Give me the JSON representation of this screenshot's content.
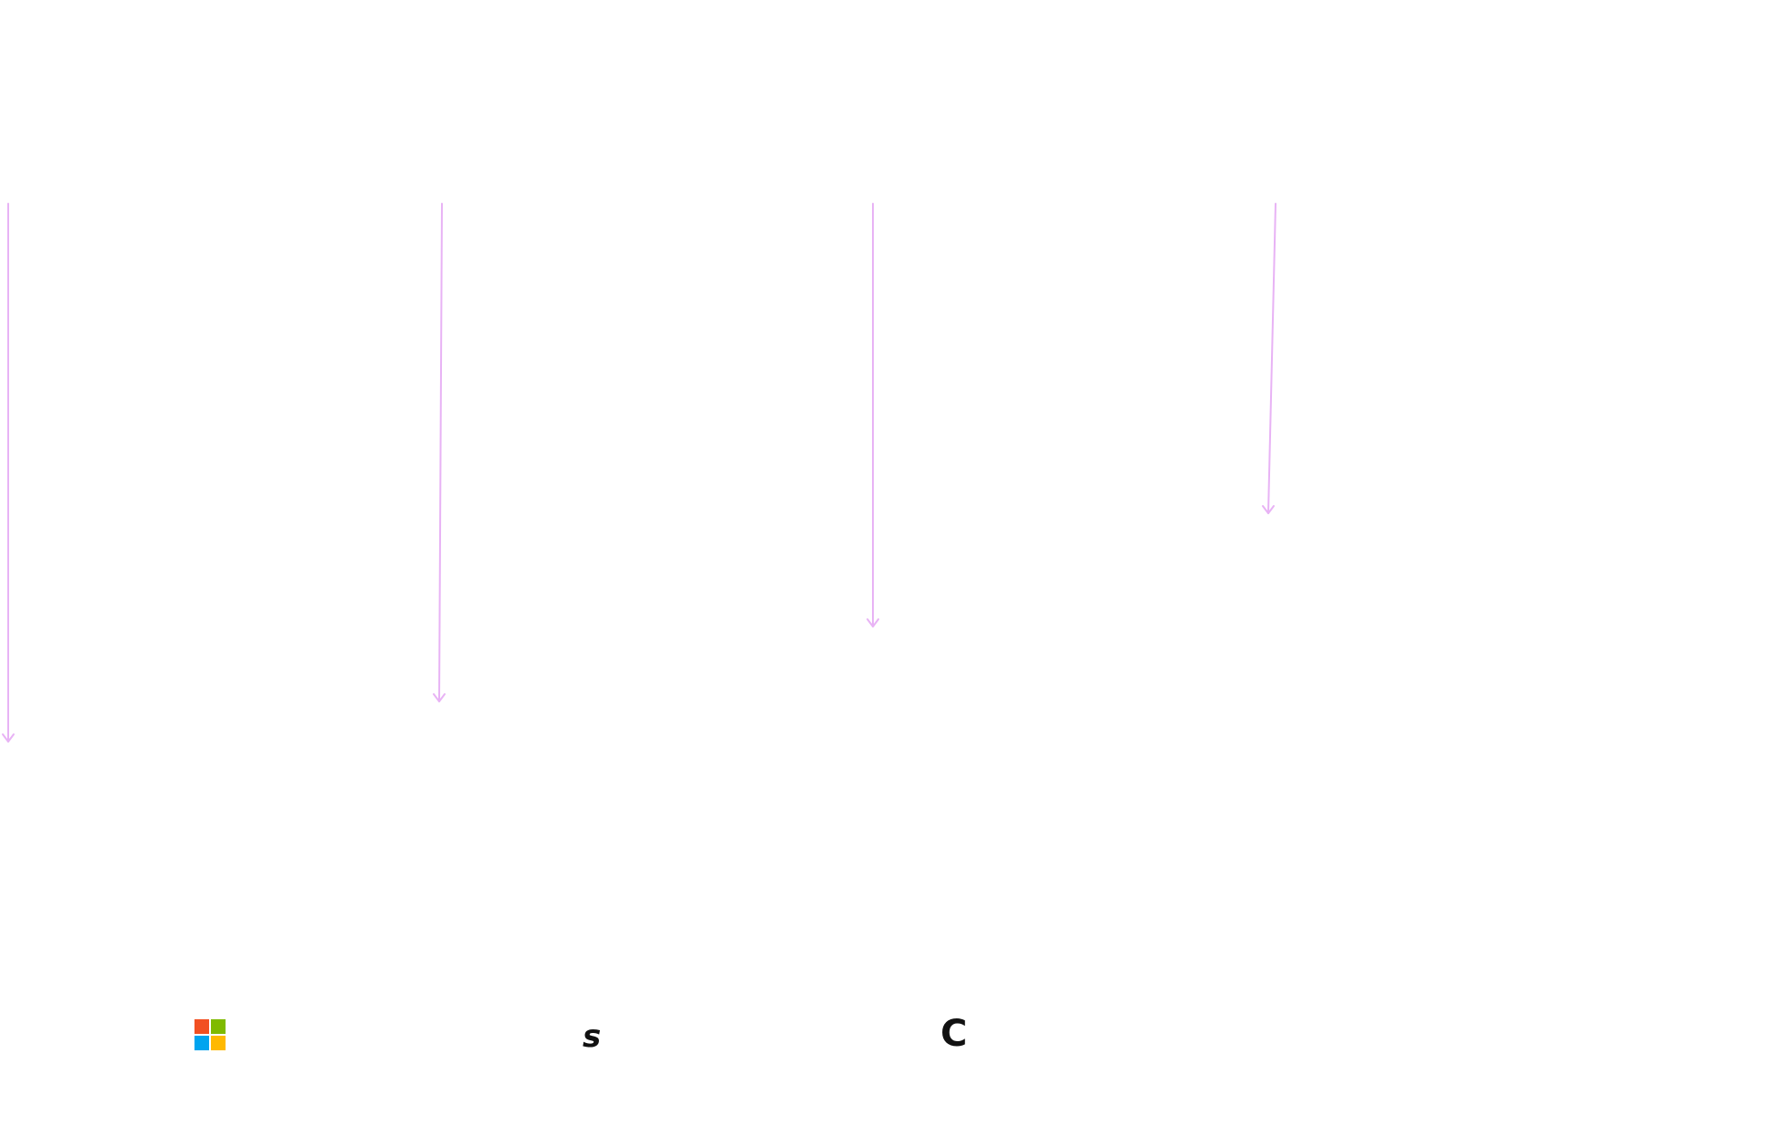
{
  "arrow_color": "#e8b3f5",
  "arrows": [
    {
      "name": "arrow-1-icon",
      "level": 0.95
    },
    {
      "name": "arrow-2-icon",
      "level": 0.89
    },
    {
      "name": "arrow-3-icon",
      "level": 0.78
    },
    {
      "name": "arrow-4-icon",
      "level": 0.61
    }
  ],
  "logos": {
    "microsoft": {
      "icon": "microsoft-logo-icon",
      "colors": [
        "#f25022",
        "#7fba00",
        "#00a4ef",
        "#ffb900"
      ]
    },
    "s_logo": {
      "icon": "s-logo-icon",
      "letter": "s"
    },
    "c_logo": {
      "icon": "c-logo-icon",
      "letter": "C"
    }
  }
}
